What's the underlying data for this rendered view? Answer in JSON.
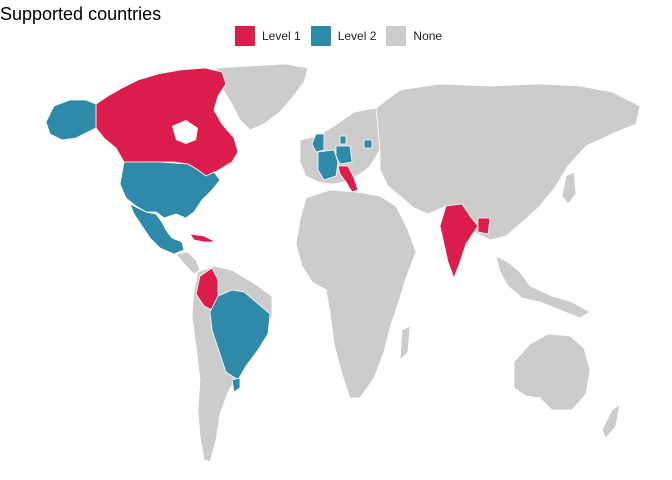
{
  "title": "Supported countries",
  "legend": {
    "items": [
      {
        "key": "level1",
        "label": "Level 1",
        "color": "#DC1C4A"
      },
      {
        "key": "level2",
        "label": "Level 2",
        "color": "#2E8AA8"
      },
      {
        "key": "none",
        "label": "None",
        "color": "#CCCCCC"
      }
    ]
  },
  "countries": {
    "level1": [
      "Canada",
      "Colombia",
      "Italy",
      "India",
      "Cuba",
      "Bangladesh"
    ],
    "level2": [
      "United States",
      "Mexico",
      "Brazil",
      "France",
      "Germany",
      "United Kingdom",
      "Denmark",
      "Uruguay",
      "Lithuania"
    ]
  }
}
